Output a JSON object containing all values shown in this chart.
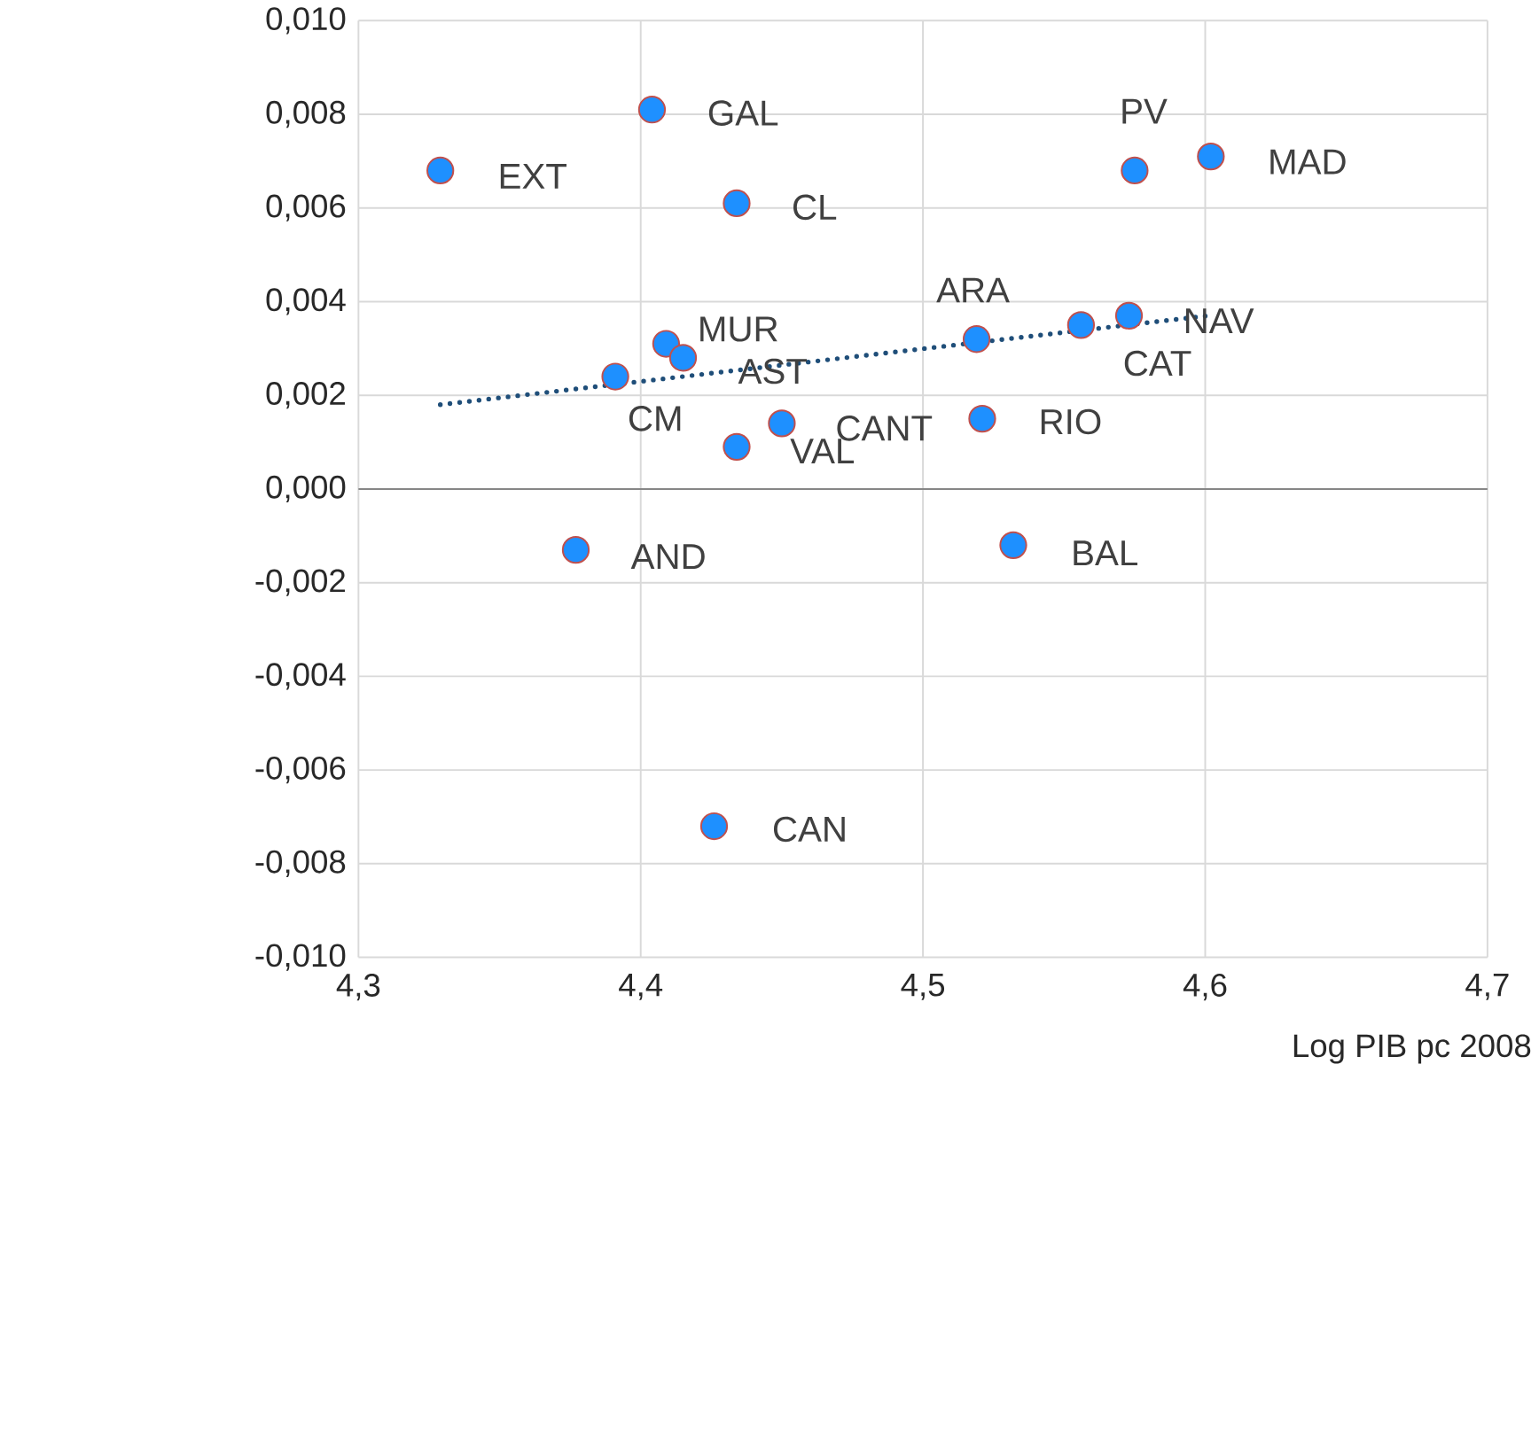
{
  "chart_data": {
    "type": "scatter",
    "xlabel": "Log PIB pc 2008",
    "xlim": [
      4.3,
      4.7
    ],
    "ylim": [
      -0.01,
      0.01
    ],
    "xticks": [
      {
        "value": 4.3,
        "label": "4,3"
      },
      {
        "value": 4.4,
        "label": "4,4"
      },
      {
        "value": 4.5,
        "label": "4,5"
      },
      {
        "value": 4.6,
        "label": "4,6"
      },
      {
        "value": 4.7,
        "label": "4,7"
      }
    ],
    "yticks": [
      {
        "value": -0.01,
        "label": "-0,010"
      },
      {
        "value": -0.008,
        "label": "-0,008"
      },
      {
        "value": -0.006,
        "label": "-0,006"
      },
      {
        "value": -0.004,
        "label": "-0,004"
      },
      {
        "value": -0.002,
        "label": "-0,002"
      },
      {
        "value": 0,
        "label": "0,000"
      },
      {
        "value": 0.002,
        "label": "0,002"
      },
      {
        "value": 0.004,
        "label": "0,004"
      },
      {
        "value": 0.006,
        "label": "0,006"
      },
      {
        "value": 0.008,
        "label": "0,008"
      },
      {
        "value": 0.01,
        "label": "0,010"
      }
    ],
    "grid": true,
    "series": [
      {
        "type": "scatter",
        "color": "#1e90ff",
        "marker": "circle",
        "x": [
          4.329,
          4.404,
          4.434,
          4.575,
          4.602,
          4.519,
          4.556,
          4.573,
          4.409,
          4.415,
          4.391,
          4.45,
          4.434,
          4.521,
          4.377,
          4.532,
          4.426
        ],
        "values": [
          0.0068,
          0.0081,
          0.0061,
          0.0068,
          0.0071,
          0.0032,
          0.0035,
          0.0037,
          0.0031,
          0.0028,
          0.0024,
          0.0014,
          0.0009,
          0.0015,
          -0.0013,
          -0.0012,
          -0.0072
        ]
      },
      {
        "type": "line",
        "color": "#1f4e79",
        "line_style": "dotted",
        "marker": "none",
        "x": [
          4.329,
          4.601
        ],
        "values": [
          0.0018,
          0.0037
        ]
      }
    ],
    "annotations": [
      {
        "text": "EXT",
        "x": 4.3294,
        "y": 0.00678
      },
      {
        "text": "GAL",
        "x": 4.4042,
        "y": 0.00813
      },
      {
        "text": "CL",
        "x": 4.4335,
        "y": 0.00612
      },
      {
        "text": "PV",
        "x": 4.5745,
        "y": 0.00678
      },
      {
        "text": "MAD",
        "x": 4.6016,
        "y": 0.00709
      },
      {
        "text": "ARA",
        "x": 4.5187,
        "y": 0.00324
      },
      {
        "text": "CAT",
        "x": 4.5555,
        "y": 0.00348
      },
      {
        "text": "NAV",
        "x": 4.5728,
        "y": 0.00366
      },
      {
        "text": "MUR",
        "x": 4.4088,
        "y": 0.0031
      },
      {
        "text": "AST",
        "x": 4.4151,
        "y": 0.00279
      },
      {
        "text": "CM",
        "x": 4.3909,
        "y": 0.00244
      },
      {
        "text": "CANT",
        "x": 4.4496,
        "y": 0.0014
      },
      {
        "text": "VAL",
        "x": 4.4335,
        "y": 0.00095
      },
      {
        "text": "RIO",
        "x": 4.521,
        "y": 0.00154
      },
      {
        "text": "AND",
        "x": 4.3771,
        "y": -0.00127
      },
      {
        "text": "BAL",
        "x": 4.5319,
        "y": -0.00116
      },
      {
        "text": "CAN",
        "x": 4.426,
        "y": -0.00716
      }
    ]
  }
}
